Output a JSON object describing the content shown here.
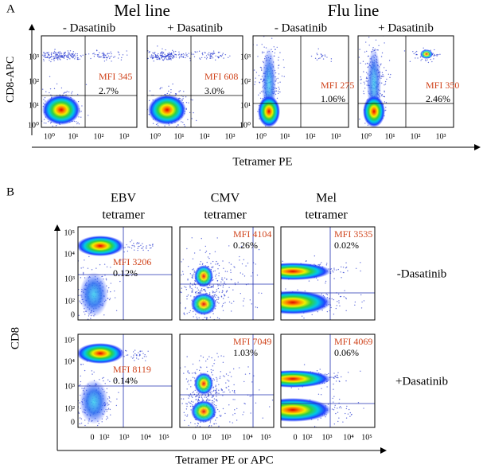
{
  "panel_a": {
    "label": "A",
    "groups": [
      {
        "title": "Mel line",
        "plots": [
          {
            "condition": "- Dasatinib",
            "mfi": "MFI 345",
            "percent": "2.7%"
          },
          {
            "condition": "+ Dasatinib",
            "mfi": "MFI 608",
            "percent": "3.0%"
          }
        ]
      },
      {
        "title": "Flu line",
        "plots": [
          {
            "condition": "- Dasatinib",
            "mfi": "MFI 275",
            "percent": "1.06%"
          },
          {
            "condition": "+ Dasatinib",
            "mfi": "MFI 350",
            "percent": "2.46%"
          }
        ]
      }
    ],
    "y_axis_label": "CD8-APC",
    "y_ticks": [
      "10³",
      "10²",
      "10¹",
      "10⁰"
    ],
    "x_ticks": [
      "10⁰",
      "10¹",
      "10²",
      "10³"
    ],
    "x_axis_label": "Tetramer PE"
  },
  "panel_b": {
    "label": "B",
    "columns": [
      {
        "name": "EBV",
        "unit": "tetramer"
      },
      {
        "name": "CMV",
        "unit": "tetramer"
      },
      {
        "name": "Mel",
        "unit": "tetramer"
      }
    ],
    "rows": [
      {
        "condition": "-Dasatinib",
        "plots": [
          {
            "mfi": "MFI 3206",
            "percent": "0.12%"
          },
          {
            "mfi": "MFI 4104",
            "percent": "0.26%"
          },
          {
            "mfi": "MFI 3535",
            "percent": "0.02%"
          }
        ]
      },
      {
        "condition": "+Dasatinib",
        "plots": [
          {
            "mfi": "MFI 8119",
            "percent": "0.14%"
          },
          {
            "mfi": "MFI 7049",
            "percent": "1.03%"
          },
          {
            "mfi": "MFI 4069",
            "percent": "0.06%"
          }
        ]
      }
    ],
    "y_axis_label": "CD8",
    "y_ticks": [
      "10⁵",
      "10⁴",
      "10³",
      "10²",
      "0"
    ],
    "x_ticks": [
      "0",
      "10²",
      "10³",
      "10⁴",
      "10⁵"
    ],
    "x_axis_label": "Tetramer PE or APC"
  }
}
